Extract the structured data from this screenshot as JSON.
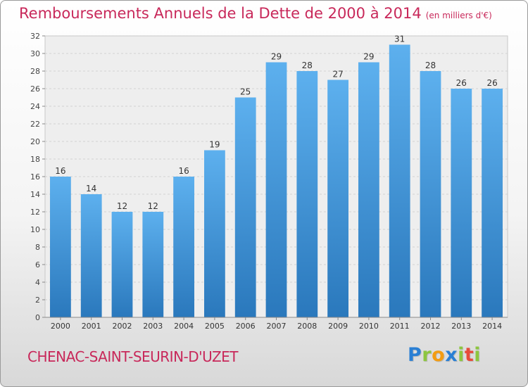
{
  "chart_data": {
    "type": "bar",
    "title": "Remboursements Annuels de la Dette de 2000 à 2014",
    "subtitle": "(en milliers d'€)",
    "categories": [
      "2000",
      "2001",
      "2002",
      "2003",
      "2004",
      "2005",
      "2006",
      "2007",
      "2008",
      "2009",
      "2010",
      "2011",
      "2012",
      "2013",
      "2014"
    ],
    "values": [
      16,
      14,
      12,
      12,
      16,
      19,
      25,
      29,
      28,
      27,
      29,
      31,
      28,
      26,
      26
    ],
    "xlabel": "",
    "ylabel": "",
    "ylim": [
      0,
      32
    ],
    "yticks": [
      0,
      2,
      4,
      6,
      8,
      10,
      12,
      14,
      16,
      18,
      20,
      22,
      24,
      26,
      28,
      30,
      32
    ],
    "grid": true,
    "data_labels": true,
    "bar_color": "#3d94d8",
    "legend": "none"
  },
  "footer": {
    "commune": "CHENAC-SAINT-SEURIN-D'UZET"
  },
  "logo": {
    "text": "Proxiti",
    "letters": [
      {
        "ch": "P",
        "color": "#2a7fd4"
      },
      {
        "ch": "r",
        "color": "#8dc63f"
      },
      {
        "ch": "o",
        "color": "#f39c12"
      },
      {
        "ch": "x",
        "color": "#2a7fd4"
      },
      {
        "ch": "i",
        "color": "#8dc63f"
      },
      {
        "ch": "t",
        "color": "#e84b3a"
      },
      {
        "ch": "i",
        "color": "#8dc63f"
      }
    ]
  }
}
